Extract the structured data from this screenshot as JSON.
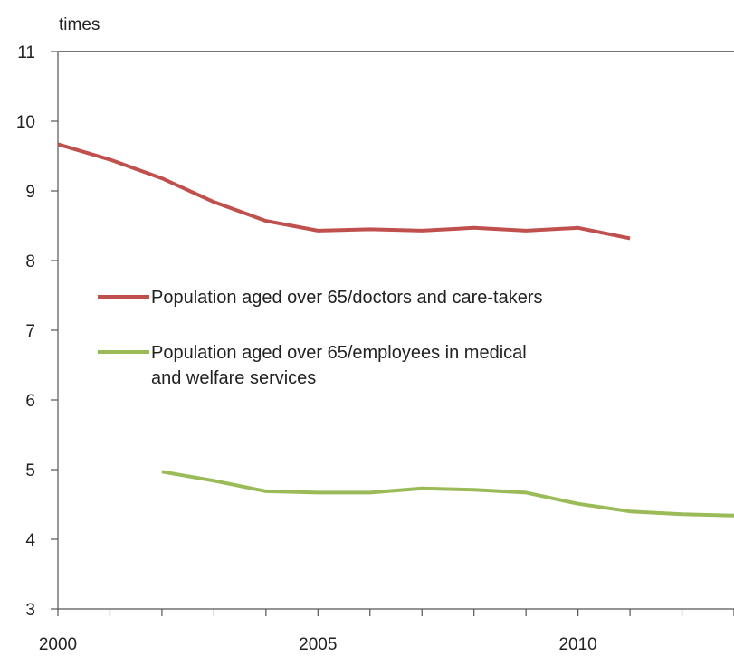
{
  "chart_data": {
    "type": "line",
    "title": "",
    "ylabel": "times",
    "xlabel": "",
    "ylim": [
      3,
      11
    ],
    "yticks": [
      3,
      4,
      5,
      6,
      7,
      8,
      9,
      10,
      11
    ],
    "xlim": [
      2000,
      2013
    ],
    "xtick_labels": [
      2000,
      2005,
      2010
    ],
    "x": [
      2000,
      2001,
      2002,
      2003,
      2004,
      2005,
      2006,
      2007,
      2008,
      2009,
      2010,
      2011,
      2012,
      2013
    ],
    "series": [
      {
        "name": "Population aged over 65/doctors and care-takers",
        "color": "#c0504d",
        "values": [
          9.67,
          9.45,
          9.18,
          8.84,
          8.57,
          8.43,
          8.45,
          8.43,
          8.47,
          8.43,
          8.47,
          8.32,
          null,
          null
        ]
      },
      {
        "name": "Population aged over 65/employees in medical and welfare services",
        "name_lines": [
          "Population aged over 65/employees in medical",
          "and welfare services"
        ],
        "color": "#9bbb59",
        "values": [
          null,
          null,
          4.97,
          4.84,
          4.69,
          4.67,
          4.67,
          4.73,
          4.71,
          4.67,
          4.51,
          4.4,
          4.36,
          4.34
        ]
      }
    ],
    "legend_position": "center-left",
    "grid": false
  }
}
